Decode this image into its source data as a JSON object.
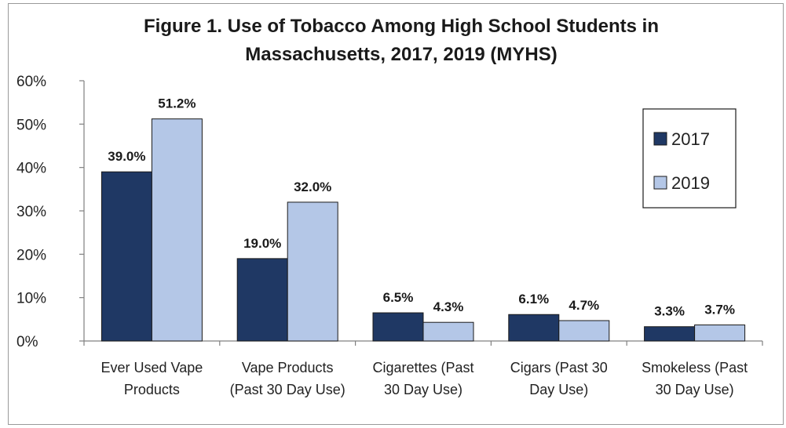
{
  "chart_data": {
    "type": "bar",
    "title_lines": [
      "Figure 1. Use of Tobacco Among High School Students in",
      "Massachusetts, 2017, 2019 (MYHS)"
    ],
    "categories": [
      [
        "Ever Used Vape",
        "Products"
      ],
      [
        "Vape Products",
        "(Past 30 Day Use)"
      ],
      [
        "Cigarettes (Past",
        "30 Day Use)"
      ],
      [
        "Cigars (Past 30",
        "Day Use)"
      ],
      [
        "Smokeless (Past",
        "30 Day Use)"
      ]
    ],
    "series": [
      {
        "name": "2017",
        "values": [
          39.0,
          19.0,
          6.5,
          6.1,
          3.3
        ],
        "labels": [
          "39.0%",
          "19.0%",
          "6.5%",
          "6.1%",
          "3.3%"
        ],
        "color": "#1f3864"
      },
      {
        "name": "2019",
        "values": [
          51.2,
          32.0,
          4.3,
          4.7,
          3.7
        ],
        "labels": [
          "51.2%",
          "32.0%",
          "4.3%",
          "4.7%",
          "3.7%"
        ],
        "color": "#b4c7e7"
      }
    ],
    "ylim": [
      0,
      60
    ],
    "yticks": [
      "0%",
      "10%",
      "20%",
      "30%",
      "40%",
      "50%",
      "60%"
    ],
    "grid": false,
    "legend_position": "right"
  }
}
